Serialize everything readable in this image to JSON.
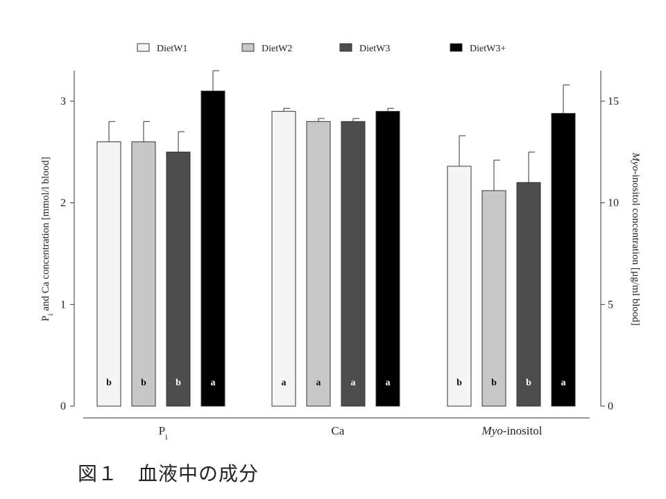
{
  "chart_data": {
    "type": "bar",
    "categories": [
      "Pi",
      "Ca",
      "Myo-inositol"
    ],
    "category_labels": [
      {
        "main": "P",
        "sub": "i",
        "italic": "",
        "rest": ""
      },
      {
        "main": "Ca",
        "sub": "",
        "italic": "",
        "rest": ""
      },
      {
        "main": "",
        "sub": "",
        "italic": "Myo",
        "rest": "-inositol"
      }
    ],
    "axis_of_category": [
      "left",
      "left",
      "right"
    ],
    "series": [
      {
        "name": "DietW1",
        "color": "#f5f5f5",
        "values": [
          2.6,
          2.9,
          11.8
        ],
        "errors": [
          0.2,
          0.03,
          1.5
        ],
        "letters": [
          "b",
          "a",
          "b"
        ]
      },
      {
        "name": "DietW2",
        "color": "#c8c8c8",
        "values": [
          2.6,
          2.8,
          10.6
        ],
        "errors": [
          0.2,
          0.03,
          1.5
        ],
        "letters": [
          "b",
          "a",
          "b"
        ]
      },
      {
        "name": "DietW3",
        "color": "#4d4d4d",
        "values": [
          2.5,
          2.8,
          11.0
        ],
        "errors": [
          0.2,
          0.03,
          1.5
        ],
        "letters": [
          "b",
          "a",
          "b"
        ]
      },
      {
        "name": "DietW3+",
        "color": "#000000",
        "values": [
          3.1,
          2.9,
          14.4
        ],
        "errors": [
          0.2,
          0.03,
          1.4
        ],
        "letters": [
          "a",
          "a",
          "a"
        ]
      }
    ],
    "left_axis": {
      "label_main": "P",
      "label_sub": "i",
      "label_rest": " and Ca concentration [mmol/l blood]",
      "ylim": [
        0,
        3.3
      ],
      "ticks": [
        "0",
        "1",
        "2",
        "3"
      ]
    },
    "right_axis": {
      "label_italic": "Myo",
      "label_rest": "-inositol concentration [µg/ml blood]",
      "ylim": [
        0,
        16.5
      ],
      "ticks": [
        "0",
        "5",
        "10",
        "15"
      ]
    },
    "legend_position": "top",
    "grid": false
  },
  "caption": "図１　血液中の成分"
}
